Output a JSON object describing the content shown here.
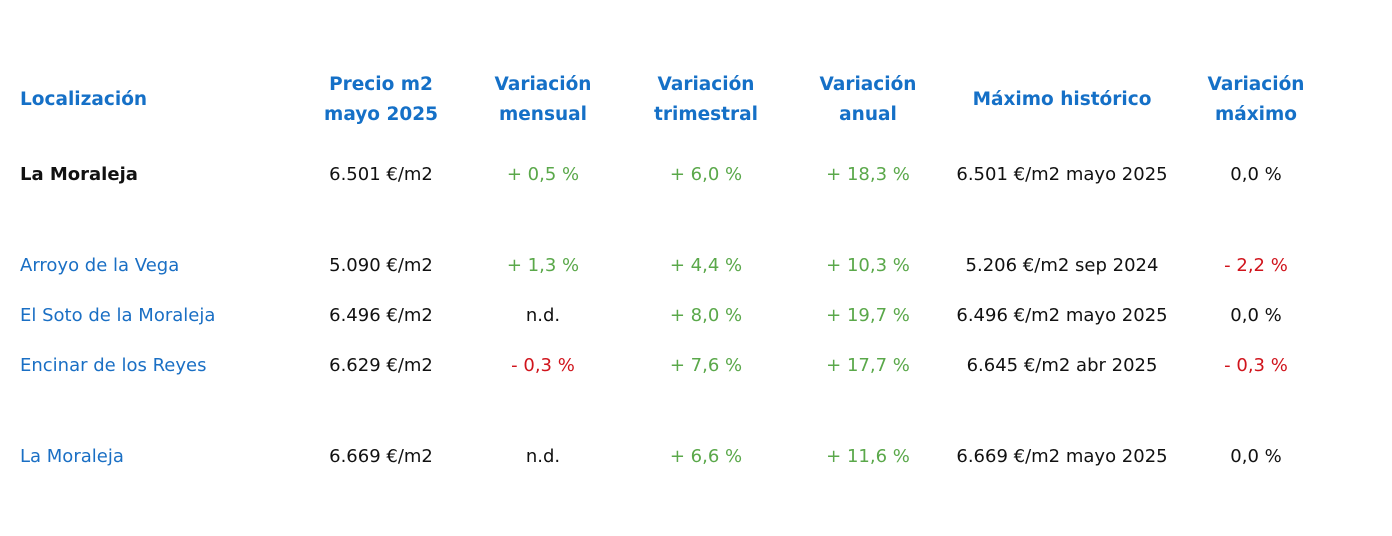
{
  "headers": {
    "location": "Localización",
    "price_line1": "Precio m2",
    "price_line2": "mayo 2025",
    "monthly_line1": "Variación",
    "monthly_line2": "mensual",
    "quarterly_line1": "Variación",
    "quarterly_line2": "trimestral",
    "annual_line1": "Variación",
    "annual_line2": "anual",
    "max_hist": "Máximo histórico",
    "var_max_line1": "Variación",
    "var_max_line2": "máximo"
  },
  "rows": [
    {
      "location": "La Moraleja",
      "price": "6.501 €/m2",
      "monthly": "+ 0,5 %",
      "quarterly": "+ 6,0 %",
      "annual": "+ 18,3 %",
      "max_hist": "6.501 €/m2 mayo 2025",
      "var_max": "0,0 %"
    },
    {
      "location": "Arroyo de la Vega",
      "price": "5.090 €/m2",
      "monthly": "+ 1,3 %",
      "quarterly": "+ 4,4 %",
      "annual": "+ 10,3 %",
      "max_hist": "5.206 €/m2 sep 2024",
      "var_max": "- 2,2 %"
    },
    {
      "location": "El Soto de la Moraleja",
      "price": "6.496 €/m2",
      "monthly": "n.d.",
      "quarterly": "+ 8,0 %",
      "annual": "+ 19,7 %",
      "max_hist": "6.496 €/m2 mayo 2025",
      "var_max": "0,0 %"
    },
    {
      "location": "Encinar de los Reyes",
      "price": "6.629 €/m2",
      "monthly": "- 0,3 %",
      "quarterly": "+ 7,6 %",
      "annual": "+ 17,7 %",
      "max_hist": "6.645 €/m2 abr 2025",
      "var_max": "- 0,3 %"
    },
    {
      "location": "La Moraleja",
      "price": "6.669 €/m2",
      "monthly": "n.d.",
      "quarterly": "+ 6,6 %",
      "annual": "+ 11,6 %",
      "max_hist": "6.669 €/m2 mayo 2025",
      "var_max": "0,0 %"
    }
  ]
}
